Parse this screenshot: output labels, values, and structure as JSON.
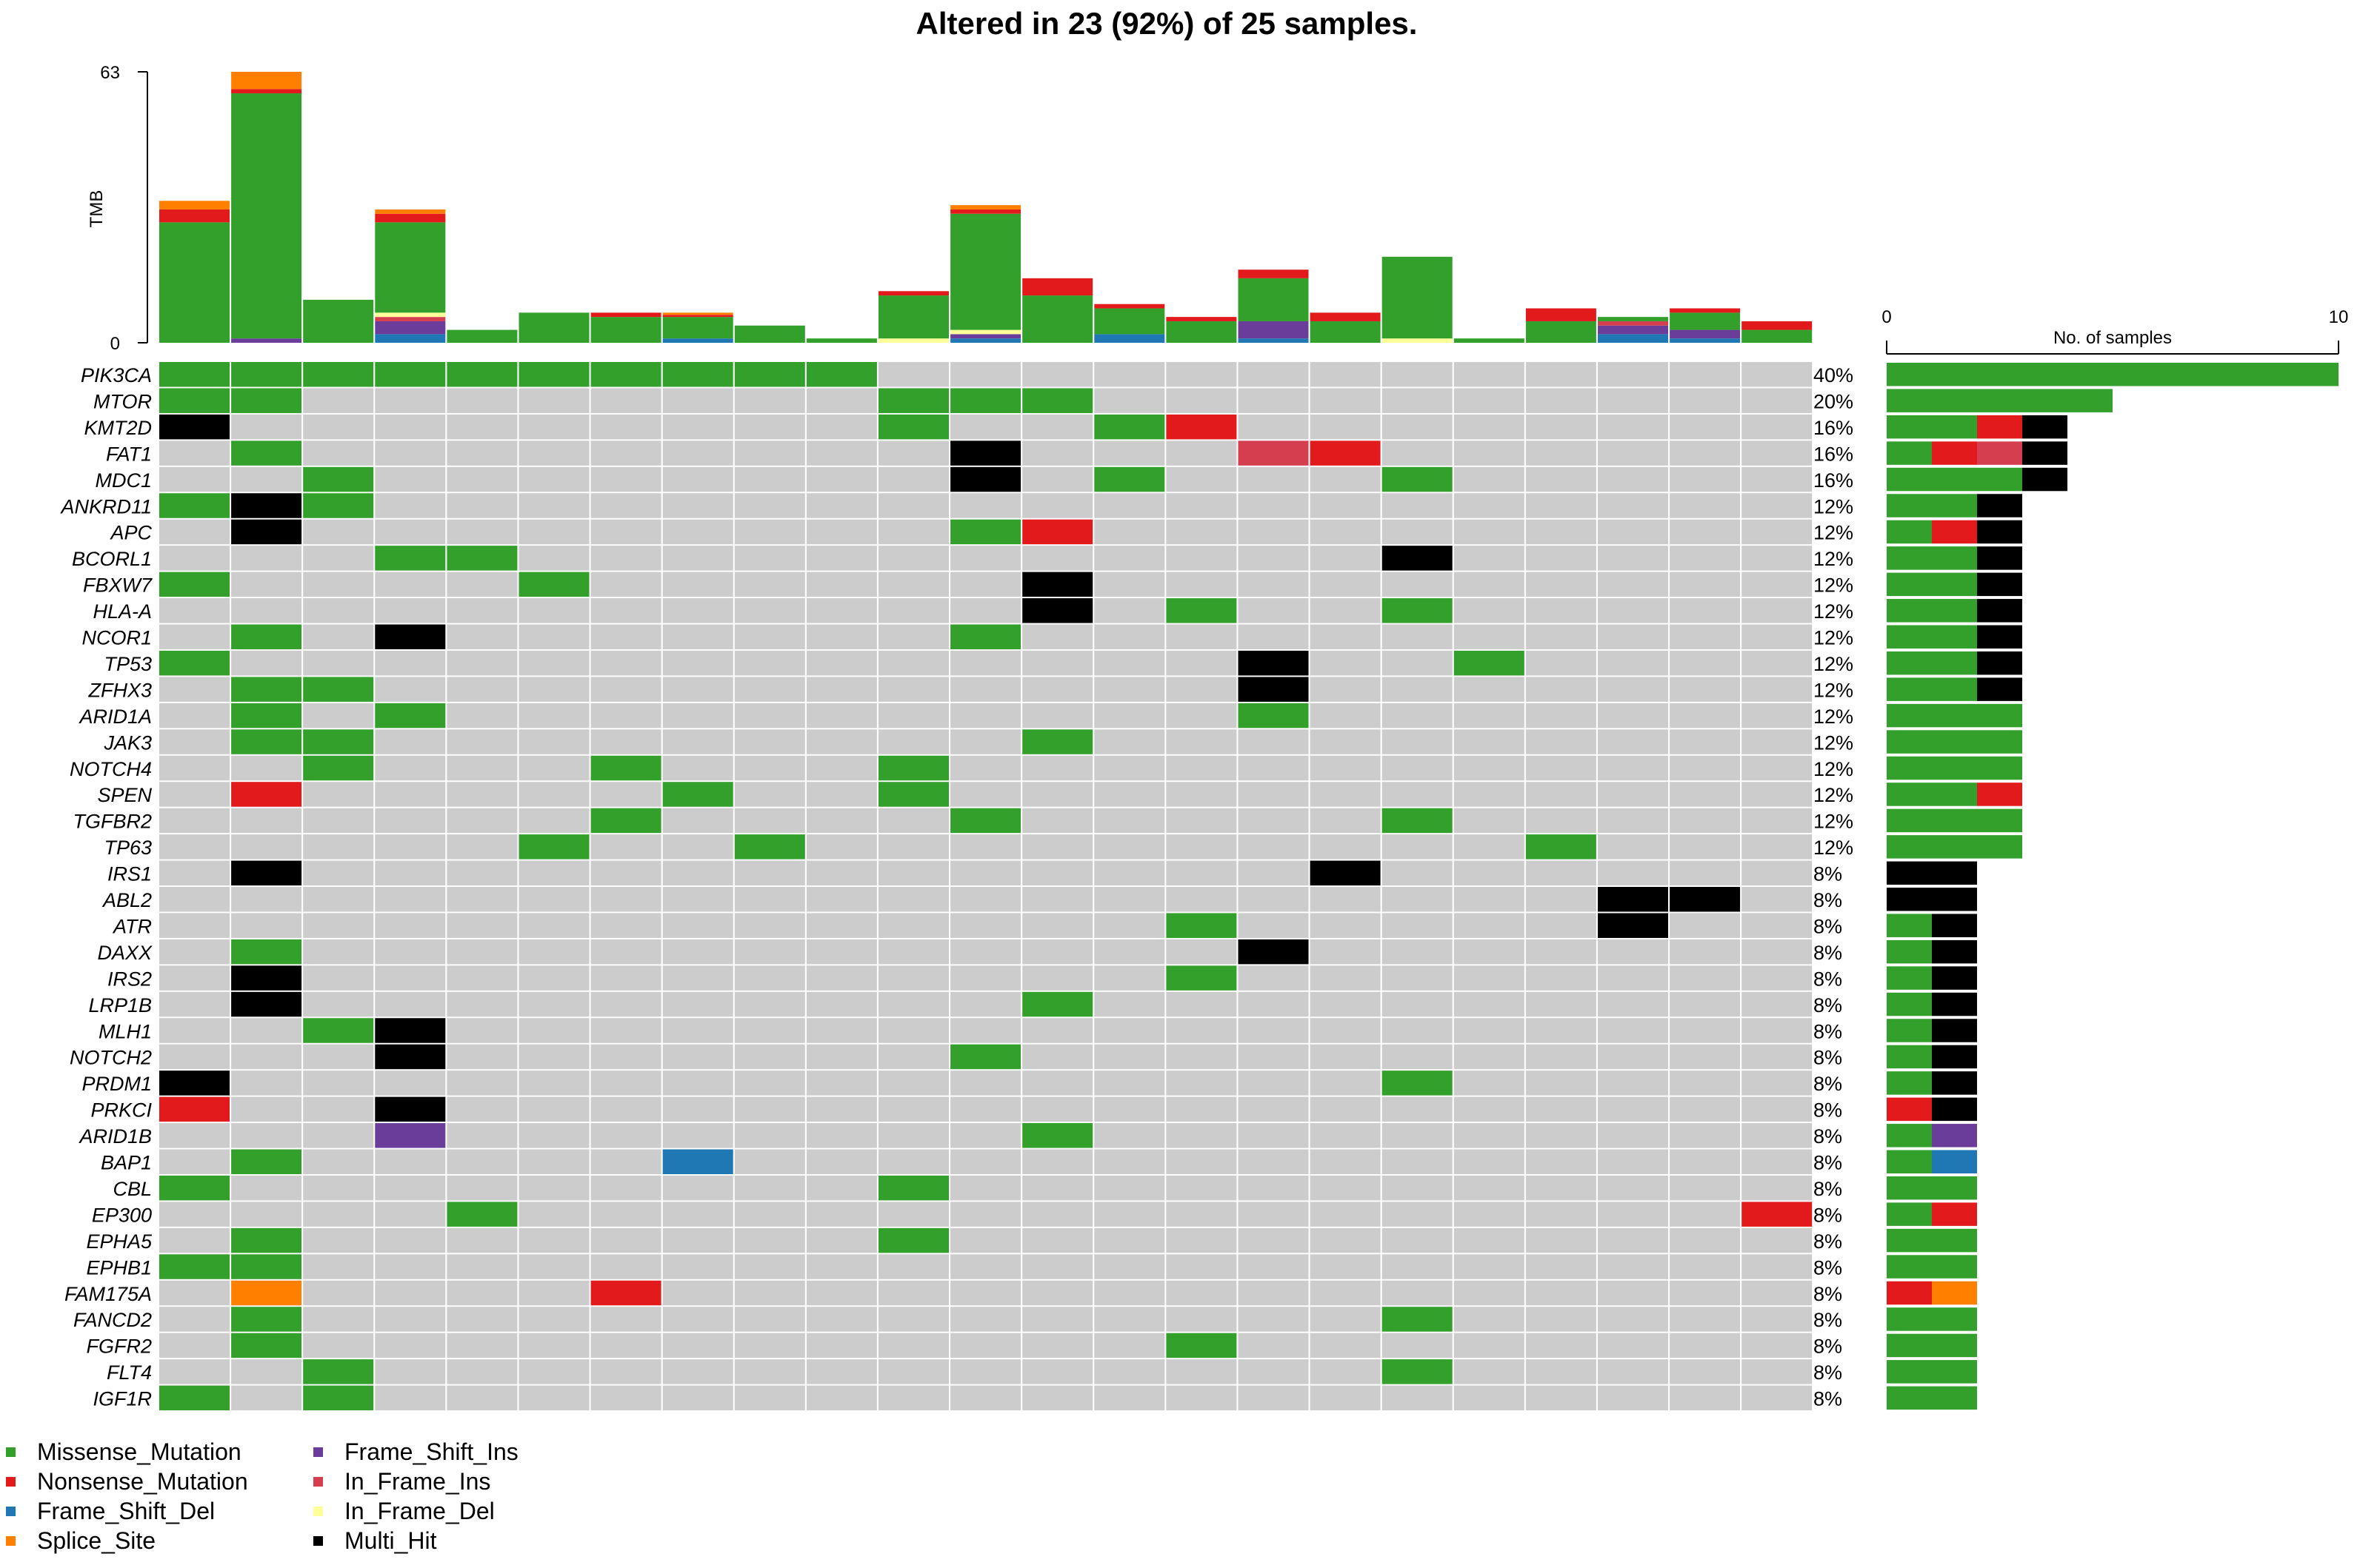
{
  "chart_data": {
    "type": "oncoplot",
    "title": "Altered in 23 (92%) of 25 samples.",
    "tmb_axis": {
      "label": "TMB",
      "max_label": "63",
      "min_label": "0",
      "range": [
        0,
        63
      ]
    },
    "side_axis": {
      "label": "No. of samples",
      "min_label": "0",
      "max_label": "10",
      "range": [
        0,
        10
      ]
    },
    "colors": {
      "Missense_Mutation": "#33A02C",
      "Nonsense_Mutation": "#E31A1C",
      "Frame_Shift_Del": "#1F78B4",
      "Splice_Site": "#FF7F00",
      "Frame_Shift_Ins": "#6A3D9A",
      "In_Frame_Ins": "#D53E4F",
      "In_Frame_Del": "#FFFF99",
      "Multi_Hit": "#000000",
      "none": "#CCCCCC"
    },
    "legend": [
      {
        "label": "Missense_Mutation",
        "key": "Missense_Mutation"
      },
      {
        "label": "Nonsense_Mutation",
        "key": "Nonsense_Mutation"
      },
      {
        "label": "Frame_Shift_Del",
        "key": "Frame_Shift_Del"
      },
      {
        "label": "Splice_Site",
        "key": "Splice_Site"
      },
      {
        "label": "Frame_Shift_Ins",
        "key": "Frame_Shift_Ins"
      },
      {
        "label": "In_Frame_Ins",
        "key": "In_Frame_Ins"
      },
      {
        "label": "In_Frame_Del",
        "key": "In_Frame_Del"
      },
      {
        "label": "Multi_Hit",
        "key": "Multi_Hit"
      }
    ],
    "sample_count": 23,
    "type_codes": {
      "M": "Missense_Mutation",
      "N": "Nonsense_Mutation",
      "D": "Frame_Shift_Del",
      "S": "Splice_Site",
      "I": "Frame_Shift_Ins",
      "F": "In_Frame_Ins",
      "E": "In_Frame_Del",
      "X": "Multi_Hit"
    },
    "tmb": [
      {
        "M": 28,
        "N": 3,
        "S": 2
      },
      {
        "I": 1,
        "M": 57,
        "N": 1,
        "S": 4
      },
      {
        "M": 10
      },
      {
        "D": 2,
        "I": 3,
        "F": 1,
        "E": 1,
        "M": 21,
        "N": 2,
        "S": 1
      },
      {
        "M": 3
      },
      {
        "M": 7
      },
      {
        "M": 6,
        "N": 1
      },
      {
        "D": 1,
        "M": 5,
        "N": 0.5,
        "S": 0.5
      },
      {
        "M": 4
      },
      {
        "M": 1
      },
      {
        "E": 1,
        "M": 10,
        "N": 1
      },
      {
        "D": 1,
        "I": 1,
        "E": 1,
        "M": 27,
        "N": 1,
        "S": 1
      },
      {
        "M": 11,
        "N": 4
      },
      {
        "D": 2,
        "M": 6,
        "N": 1
      },
      {
        "M": 5,
        "N": 1
      },
      {
        "D": 1,
        "I": 4,
        "M": 10,
        "N": 2
      },
      {
        "M": 5,
        "N": 2
      },
      {
        "E": 1,
        "M": 19
      },
      {
        "M": 1
      },
      {
        "M": 5,
        "N": 3
      },
      {
        "D": 2,
        "I": 2,
        "F": 1,
        "M": 1
      },
      {
        "D": 1,
        "I": 2,
        "N": 1,
        "M": 4
      },
      {
        "M": 3,
        "N": 2
      }
    ],
    "genes": [
      {
        "name": "PIK3CA",
        "pct": "40%",
        "cells": {
          "0": "M",
          "1": "M",
          "2": "M",
          "3": "M",
          "4": "M",
          "5": "M",
          "6": "M",
          "7": "M",
          "8": "M",
          "9": "M"
        },
        "bar": {
          "M": 10
        }
      },
      {
        "name": "MTOR",
        "pct": "20%",
        "cells": {
          "0": "M",
          "1": "M",
          "10": "M",
          "11": "M",
          "12": "M"
        },
        "bar": {
          "M": 5
        }
      },
      {
        "name": "KMT2D",
        "pct": "16%",
        "cells": {
          "0": "X",
          "10": "M",
          "13": "M",
          "14": "N"
        },
        "bar": {
          "M": 2,
          "N": 1,
          "X": 1
        }
      },
      {
        "name": "FAT1",
        "pct": "16%",
        "cells": {
          "1": "M",
          "11": "X",
          "15": "F",
          "16": "N"
        },
        "bar": {
          "M": 1,
          "N": 1,
          "F": 1,
          "X": 1
        }
      },
      {
        "name": "MDC1",
        "pct": "16%",
        "cells": {
          "2": "M",
          "11": "X",
          "13": "M",
          "17": "M"
        },
        "bar": {
          "M": 3,
          "X": 1
        }
      },
      {
        "name": "ANKRD11",
        "pct": "12%",
        "cells": {
          "0": "M",
          "1": "X",
          "2": "M"
        },
        "bar": {
          "M": 2,
          "X": 1
        }
      },
      {
        "name": "APC",
        "pct": "12%",
        "cells": {
          "1": "X",
          "11": "M",
          "12": "N"
        },
        "bar": {
          "M": 1,
          "N": 1,
          "X": 1
        }
      },
      {
        "name": "BCORL1",
        "pct": "12%",
        "cells": {
          "3": "M",
          "4": "M",
          "17": "X"
        },
        "bar": {
          "M": 2,
          "X": 1
        }
      },
      {
        "name": "FBXW7",
        "pct": "12%",
        "cells": {
          "0": "M",
          "5": "M",
          "12": "X"
        },
        "bar": {
          "M": 2,
          "X": 1
        }
      },
      {
        "name": "HLA-A",
        "pct": "12%",
        "cells": {
          "12": "X",
          "14": "M",
          "17": "M"
        },
        "bar": {
          "M": 2,
          "X": 1
        }
      },
      {
        "name": "NCOR1",
        "pct": "12%",
        "cells": {
          "1": "M",
          "3": "X",
          "11": "M"
        },
        "bar": {
          "M": 2,
          "X": 1
        }
      },
      {
        "name": "TP53",
        "pct": "12%",
        "cells": {
          "0": "M",
          "15": "X",
          "18": "M"
        },
        "bar": {
          "M": 2,
          "X": 1
        }
      },
      {
        "name": "ZFHX3",
        "pct": "12%",
        "cells": {
          "1": "M",
          "2": "M",
          "15": "X"
        },
        "bar": {
          "M": 2,
          "X": 1
        }
      },
      {
        "name": "ARID1A",
        "pct": "12%",
        "cells": {
          "1": "M",
          "3": "M",
          "15": "M"
        },
        "bar": {
          "M": 3
        }
      },
      {
        "name": "JAK3",
        "pct": "12%",
        "cells": {
          "1": "M",
          "2": "M",
          "12": "M"
        },
        "bar": {
          "M": 3
        }
      },
      {
        "name": "NOTCH4",
        "pct": "12%",
        "cells": {
          "2": "M",
          "6": "M",
          "10": "M"
        },
        "bar": {
          "M": 3
        }
      },
      {
        "name": "SPEN",
        "pct": "12%",
        "cells": {
          "1": "N",
          "7": "M",
          "10": "M"
        },
        "bar": {
          "M": 2,
          "N": 1
        }
      },
      {
        "name": "TGFBR2",
        "pct": "12%",
        "cells": {
          "6": "M",
          "11": "M",
          "17": "M"
        },
        "bar": {
          "M": 3
        }
      },
      {
        "name": "TP63",
        "pct": "12%",
        "cells": {
          "5": "M",
          "8": "M",
          "19": "M"
        },
        "bar": {
          "M": 3
        }
      },
      {
        "name": "IRS1",
        "pct": "8%",
        "cells": {
          "1": "X",
          "16": "X"
        },
        "bar": {
          "X": 2
        }
      },
      {
        "name": "ABL2",
        "pct": "8%",
        "cells": {
          "20": "X",
          "21": "X"
        },
        "bar": {
          "X": 2
        }
      },
      {
        "name": "ATR",
        "pct": "8%",
        "cells": {
          "14": "M",
          "20": "X"
        },
        "bar": {
          "M": 1,
          "X": 1
        }
      },
      {
        "name": "DAXX",
        "pct": "8%",
        "cells": {
          "1": "M",
          "15": "X"
        },
        "bar": {
          "M": 1,
          "X": 1
        }
      },
      {
        "name": "IRS2",
        "pct": "8%",
        "cells": {
          "1": "X",
          "14": "M"
        },
        "bar": {
          "M": 1,
          "X": 1
        }
      },
      {
        "name": "LRP1B",
        "pct": "8%",
        "cells": {
          "1": "X",
          "12": "M"
        },
        "bar": {
          "M": 1,
          "X": 1
        }
      },
      {
        "name": "MLH1",
        "pct": "8%",
        "cells": {
          "2": "M",
          "3": "X"
        },
        "bar": {
          "M": 1,
          "X": 1
        }
      },
      {
        "name": "NOTCH2",
        "pct": "8%",
        "cells": {
          "3": "X",
          "11": "M"
        },
        "bar": {
          "M": 1,
          "X": 1
        }
      },
      {
        "name": "PRDM1",
        "pct": "8%",
        "cells": {
          "0": "X",
          "17": "M"
        },
        "bar": {
          "M": 1,
          "X": 1
        }
      },
      {
        "name": "PRKCI",
        "pct": "8%",
        "cells": {
          "0": "N",
          "3": "X"
        },
        "bar": {
          "N": 1,
          "X": 1
        }
      },
      {
        "name": "ARID1B",
        "pct": "8%",
        "cells": {
          "3": "I",
          "12": "M"
        },
        "bar": {
          "M": 1,
          "I": 1
        }
      },
      {
        "name": "BAP1",
        "pct": "8%",
        "cells": {
          "1": "M",
          "7": "D"
        },
        "bar": {
          "M": 1,
          "D": 1
        }
      },
      {
        "name": "CBL",
        "pct": "8%",
        "cells": {
          "0": "M",
          "10": "M"
        },
        "bar": {
          "M": 2
        }
      },
      {
        "name": "EP300",
        "pct": "8%",
        "cells": {
          "4": "M",
          "22": "N"
        },
        "bar": {
          "M": 1,
          "N": 1
        }
      },
      {
        "name": "EPHA5",
        "pct": "8%",
        "cells": {
          "1": "M",
          "10": "M"
        },
        "bar": {
          "M": 2
        }
      },
      {
        "name": "EPHB1",
        "pct": "8%",
        "cells": {
          "0": "M",
          "1": "M"
        },
        "bar": {
          "M": 2
        }
      },
      {
        "name": "FAM175A",
        "pct": "8%",
        "cells": {
          "1": "S",
          "6": "N"
        },
        "bar": {
          "N": 1,
          "S": 1
        }
      },
      {
        "name": "FANCD2",
        "pct": "8%",
        "cells": {
          "1": "M",
          "17": "M"
        },
        "bar": {
          "M": 2
        }
      },
      {
        "name": "FGFR2",
        "pct": "8%",
        "cells": {
          "1": "M",
          "14": "M"
        },
        "bar": {
          "M": 2
        }
      },
      {
        "name": "FLT4",
        "pct": "8%",
        "cells": {
          "2": "M",
          "17": "M"
        },
        "bar": {
          "M": 2
        }
      },
      {
        "name": "IGF1R",
        "pct": "8%",
        "cells": {
          "0": "M",
          "2": "M"
        },
        "bar": {
          "M": 2
        }
      }
    ]
  }
}
